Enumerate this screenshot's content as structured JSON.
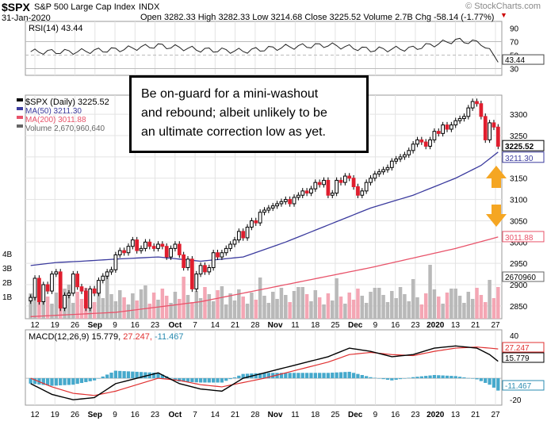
{
  "header": {
    "ticker": "$SPX",
    "name": "S&P 500 Large Cap Index",
    "exchange": "INDX",
    "date": "31-Jan-2020",
    "ohlc": "Open 3282.33  High 3282.33  Low 3214.68  Close 3225.52  Volume 2.7B  Chg -58.14 (-1.77%)",
    "watermark": "© StockCharts.com"
  },
  "rsi": {
    "label": "RSI(14) 43.44",
    "current": "43.44",
    "ticks": [
      "90",
      "70",
      "50",
      "30"
    ]
  },
  "legend": {
    "price": "$SPX (Daily) 3225.52",
    "ma50": "MA(50) 3211.30",
    "ma200": "MA(200) 3011.88",
    "volume": "Volume 2,670,960,640"
  },
  "callout": {
    "line1": "Be on-guard for a mini-washout",
    "line2": "and rebound; albeit unlikely to be",
    "line3": "an ultimate correction low as yet."
  },
  "macd": {
    "label_prefix": "MACD(12,26,9)",
    "v1": "15.779,",
    "v2": "27.247,",
    "v3": "-11.467",
    "tick_top": "40",
    "tick_bottom": "-20"
  },
  "colors": {
    "up": "#ffffff",
    "down": "#e01e2e",
    "ma50": "#3b3b9e",
    "ma200": "#e8536a",
    "vol_up": "#b9b9b9",
    "vol_down": "#f4a6b4",
    "rsi_fill": "#3f7f3f",
    "macd_hist": "#46a9cc",
    "arrow": "#f5a623"
  },
  "chart_data": {
    "type": "candlestick",
    "title": "$SPX S&P 500 Large Cap Index",
    "x_labels": [
      "12",
      "19",
      "26",
      "Sep",
      "9",
      "16",
      "23",
      "Oct",
      "7",
      "14",
      "21",
      "28",
      "Nov",
      "11",
      "18",
      "25",
      "Dec",
      "9",
      "16",
      "23",
      "2020",
      "13",
      "21",
      "27"
    ],
    "price_ticks": [
      3300,
      3250,
      3200,
      3150,
      3100,
      3050,
      3000,
      2950,
      2900,
      2850
    ],
    "price_ylim": [
      2820,
      3345
    ],
    "closes": [
      2870,
      2915,
      2860,
      2900,
      2885,
      2925,
      2930,
      2845,
      2875,
      2880,
      2925,
      2895,
      2885,
      2845,
      2890,
      2880,
      2910,
      2920,
      2930,
      2935,
      2970,
      2980,
      2975,
      2990,
      3005,
      2980,
      2985,
      3000,
      2990,
      2985,
      2995,
      2990,
      2965,
      2985,
      2995,
      2970,
      2940,
      2960,
      2890,
      2925,
      2945,
      2930,
      2940,
      2975,
      2965,
      2975,
      2985,
      2995,
      3005,
      3025,
      3010,
      3035,
      3050,
      3045,
      3070,
      3075,
      3080,
      3085,
      3090,
      3095,
      3100,
      3090,
      3105,
      3110,
      3120,
      3115,
      3125,
      3140,
      3135,
      3145,
      3110,
      3115,
      3145,
      3140,
      3155,
      3150,
      3130,
      3110,
      3120,
      3140,
      3150,
      3160,
      3165,
      3170,
      3175,
      3190,
      3195,
      3200,
      3205,
      3215,
      3230,
      3240,
      3235,
      3225,
      3240,
      3260,
      3255,
      3275,
      3265,
      3275,
      3285,
      3290,
      3295,
      3315,
      3330,
      3325,
      3295,
      3240,
      3280,
      3270,
      3225
    ],
    "ma50_points": [
      [
        0,
        2945
      ],
      [
        6,
        2952
      ],
      [
        12,
        2955
      ],
      [
        20,
        2960
      ],
      [
        30,
        2965
      ],
      [
        40,
        2955
      ],
      [
        50,
        2965
      ],
      [
        60,
        3000
      ],
      [
        70,
        3040
      ],
      [
        80,
        3080
      ],
      [
        90,
        3110
      ],
      [
        100,
        3150
      ],
      [
        106,
        3180
      ],
      [
        110,
        3211.3
      ]
    ],
    "ma200_points": [
      [
        0,
        2825
      ],
      [
        20,
        2835
      ],
      [
        40,
        2860
      ],
      [
        60,
        2900
      ],
      [
        80,
        2940
      ],
      [
        100,
        2985
      ],
      [
        110,
        3011.88
      ]
    ],
    "volume_ticks": [
      "4B",
      "3B",
      "2B",
      "1B"
    ],
    "right_labels": [
      "3225.52",
      "3211.30",
      "3011.88",
      "2670960"
    ],
    "rsi_points": [
      [
        0,
        55
      ],
      [
        10,
        55
      ],
      [
        20,
        58
      ],
      [
        30,
        64
      ],
      [
        40,
        58
      ],
      [
        50,
        56
      ],
      [
        60,
        62
      ],
      [
        70,
        65
      ],
      [
        80,
        58
      ],
      [
        90,
        60
      ],
      [
        100,
        72
      ],
      [
        106,
        68
      ],
      [
        110,
        43.44
      ]
    ],
    "macd_line": [
      [
        0,
        -5
      ],
      [
        5,
        -15
      ],
      [
        10,
        -20
      ],
      [
        15,
        -18
      ],
      [
        20,
        -5
      ],
      [
        25,
        0
      ],
      [
        30,
        5
      ],
      [
        35,
        -5
      ],
      [
        40,
        -10
      ],
      [
        45,
        -12
      ],
      [
        50,
        0
      ],
      [
        55,
        5
      ],
      [
        60,
        10
      ],
      [
        65,
        15
      ],
      [
        70,
        20
      ],
      [
        75,
        28
      ],
      [
        80,
        25
      ],
      [
        85,
        20
      ],
      [
        90,
        22
      ],
      [
        95,
        28
      ],
      [
        100,
        30
      ],
      [
        105,
        28
      ],
      [
        108,
        22
      ],
      [
        110,
        15.779
      ]
    ],
    "signal_line": [
      [
        0,
        0
      ],
      [
        5,
        -8
      ],
      [
        10,
        -14
      ],
      [
        15,
        -16
      ],
      [
        20,
        -12
      ],
      [
        25,
        -6
      ],
      [
        30,
        0
      ],
      [
        35,
        -2
      ],
      [
        40,
        -6
      ],
      [
        45,
        -8
      ],
      [
        50,
        -4
      ],
      [
        55,
        0
      ],
      [
        60,
        5
      ],
      [
        65,
        10
      ],
      [
        70,
        15
      ],
      [
        75,
        22
      ],
      [
        80,
        24
      ],
      [
        85,
        22
      ],
      [
        90,
        21
      ],
      [
        95,
        25
      ],
      [
        100,
        28
      ],
      [
        105,
        29
      ],
      [
        108,
        28
      ],
      [
        110,
        27.247
      ]
    ],
    "macd_ylim": [
      -25,
      45
    ]
  }
}
